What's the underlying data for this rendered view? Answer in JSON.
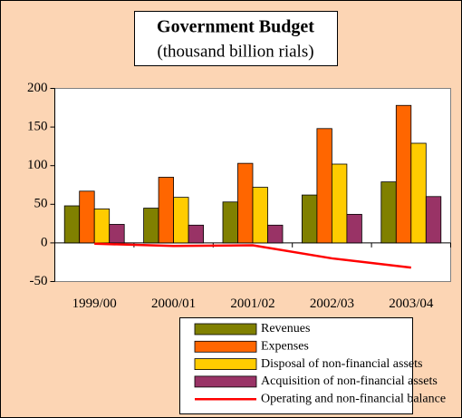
{
  "chart_data": {
    "type": "bar",
    "title": "Government Budget",
    "subtitle": "(thousand billion rials)",
    "categories": [
      "1999/00",
      "2000/01",
      "2001/02",
      "2002/03",
      "2003/04"
    ],
    "series": [
      {
        "name": "Revenues",
        "color": "#808000",
        "values": [
          48,
          45,
          53,
          62,
          79
        ]
      },
      {
        "name": "Expenses",
        "color": "#ff6600",
        "values": [
          67,
          85,
          103,
          148,
          178
        ]
      },
      {
        "name": "Disposal of non-financial assets",
        "color": "#ffcc00",
        "values": [
          44,
          59,
          72,
          102,
          129
        ]
      },
      {
        "name": "Acquisition of non-financial assets",
        "color": "#993366",
        "values": [
          24,
          23,
          23,
          37,
          60
        ]
      },
      {
        "name": "Operating and non-financial balance",
        "color": "#ff0000",
        "type": "line",
        "values": [
          -1,
          -4,
          -3,
          -20,
          -32
        ]
      }
    ],
    "ylim": [
      -50,
      200
    ],
    "yticks": [
      -50,
      0,
      50,
      100,
      150,
      200
    ]
  }
}
